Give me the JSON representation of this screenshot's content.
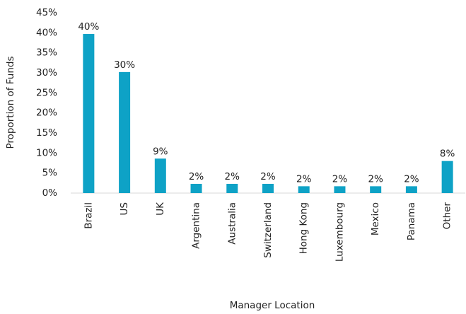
{
  "chart_data": {
    "type": "bar",
    "x_label": "Manager Location",
    "y_label": "Proportion of Funds",
    "categories": [
      "Brazil",
      "US",
      "UK",
      "Argentina",
      "Australia",
      "Switzerland",
      "Hong Kong",
      "Luxembourg",
      "Mexico",
      "Panama",
      "Other"
    ],
    "values": [
      39.7,
      30.2,
      8.6,
      2.3,
      2.3,
      2.3,
      1.7,
      1.7,
      1.7,
      1.7,
      8.0
    ],
    "value_labels": [
      "40%",
      "30%",
      "9%",
      "2%",
      "2%",
      "2%",
      "2%",
      "2%",
      "2%",
      "2%",
      "8%"
    ],
    "color": "#0ea2c6",
    "ylim": [
      0,
      45
    ],
    "yticks": [
      {
        "value": 0,
        "label": "0%"
      },
      {
        "value": 5,
        "label": "5%"
      },
      {
        "value": 10,
        "label": "10%"
      },
      {
        "value": 15,
        "label": "15%"
      },
      {
        "value": 20,
        "label": "20%"
      },
      {
        "value": 25,
        "label": "25%"
      },
      {
        "value": 30,
        "label": "30%"
      },
      {
        "value": 35,
        "label": "35%"
      },
      {
        "value": 40,
        "label": "40%"
      },
      {
        "value": 45,
        "label": "45%"
      }
    ],
    "grid": false
  }
}
